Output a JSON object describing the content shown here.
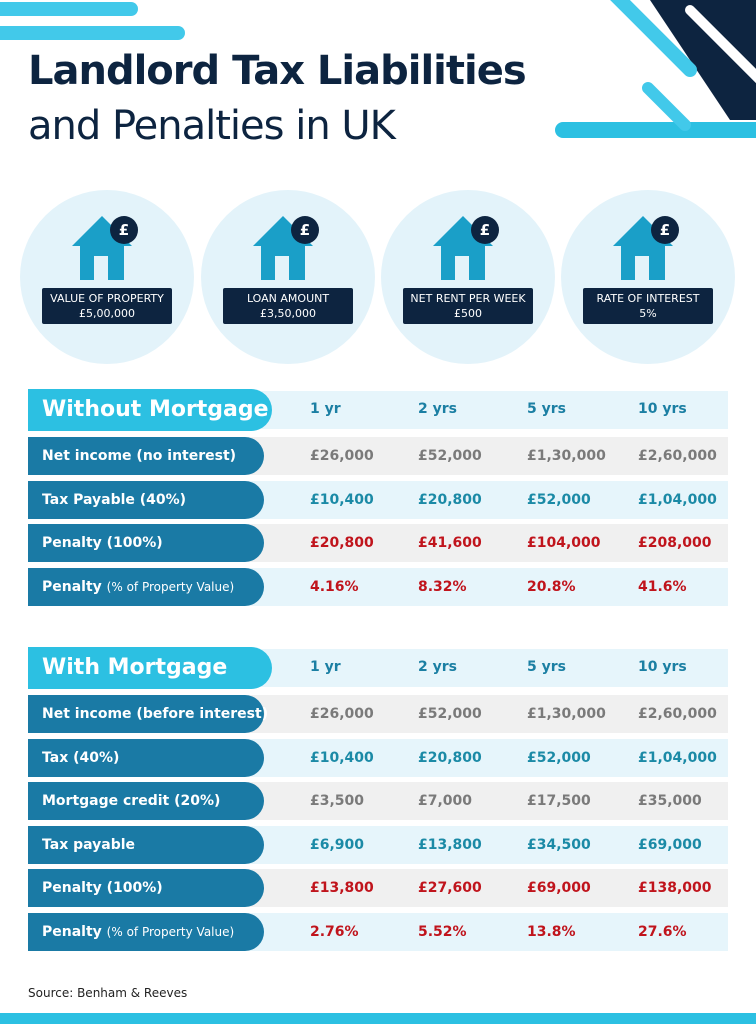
{
  "header": {
    "title_line1": "Landlord Tax Liabilities",
    "title_line2": "and Penalties in UK"
  },
  "stats": [
    {
      "label": "VALUE OF PROPERTY",
      "value": "£5,00,000"
    },
    {
      "label": "LOAN AMOUNT",
      "value": "£3,50,000"
    },
    {
      "label": "NET RENT PER WEEK",
      "value": "£500"
    },
    {
      "label": "RATE OF INTEREST",
      "value": "5%"
    }
  ],
  "tables": [
    {
      "title": "Without Mortgage",
      "columns": [
        "1 yr",
        "2 yrs",
        "5 yrs",
        "10 yrs"
      ],
      "rows": [
        {
          "label": "Net income (no interest)",
          "color": "#7a7a7a",
          "cells": [
            "£26,000",
            "£52,000",
            "£1,30,000",
            "£2,60,000"
          ]
        },
        {
          "label": "Tax Payable (40%)",
          "color": "#1b8aa6",
          "cells": [
            "£10,400",
            "£20,800",
            "£52,000",
            "£1,04,000"
          ]
        },
        {
          "label": "Penalty (100%)",
          "color": "#c0141c",
          "cells": [
            "£20,800",
            "£41,600",
            "£104,000",
            "£208,000"
          ]
        },
        {
          "label": "Penalty",
          "note": "(% of Property Value)",
          "color": "#c0141c",
          "cells": [
            "4.16%",
            "8.32%",
            "20.8%",
            "41.6%"
          ]
        }
      ]
    },
    {
      "title": "With Mortgage",
      "columns": [
        "1 yr",
        "2 yrs",
        "5 yrs",
        "10 yrs"
      ],
      "rows": [
        {
          "label": "Net income (before interest)",
          "color": "#7a7a7a",
          "cells": [
            "£26,000",
            "£52,000",
            "£1,30,000",
            "£2,60,000"
          ]
        },
        {
          "label": "Tax (40%)",
          "color": "#1b8aa6",
          "cells": [
            "£10,400",
            "£20,800",
            "£52,000",
            "£1,04,000"
          ]
        },
        {
          "label": "Mortgage credit (20%)",
          "color": "#7a7a7a",
          "cells": [
            "£3,500",
            "£7,000",
            "£17,500",
            "£35,000"
          ]
        },
        {
          "label": "Tax payable",
          "color": "#1b8aa6",
          "cells": [
            "£6,900",
            "£13,800",
            "£34,500",
            "£69,000"
          ]
        },
        {
          "label": "Penalty (100%)",
          "color": "#c0141c",
          "cells": [
            "£13,800",
            "£27,600",
            "£69,000",
            "£138,000"
          ]
        },
        {
          "label": "Penalty",
          "note": "(% of Property Value)",
          "color": "#c0141c",
          "cells": [
            "2.76%",
            "5.52%",
            "13.8%",
            "27.6%"
          ]
        }
      ]
    }
  ],
  "source": "Source: Benham & Reeves"
}
